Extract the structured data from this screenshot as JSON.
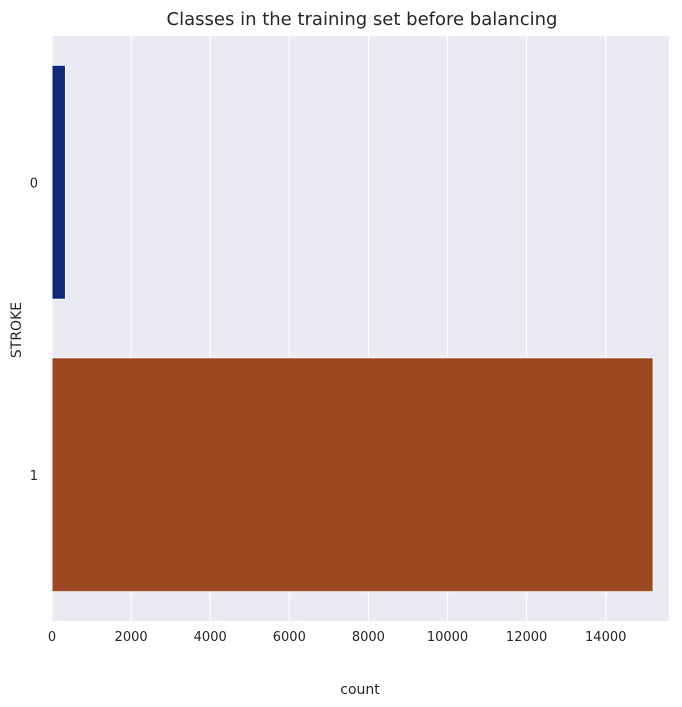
{
  "chart_data": {
    "type": "bar",
    "orientation": "horizontal",
    "title": "Classes in the training set before balancing",
    "xlabel": "count",
    "ylabel": "STROKE",
    "categories": [
      "0",
      "1"
    ],
    "values": [
      340,
      15200
    ],
    "colors": [
      "#13277a",
      "#9c4921"
    ],
    "xlim": [
      0,
      15600
    ],
    "xticks": [
      0,
      2000,
      4000,
      6000,
      8000,
      10000,
      12000,
      14000
    ],
    "xtick_labels": [
      "0",
      "2000",
      "4000",
      "6000",
      "8000",
      "10000",
      "12000",
      "14000"
    ],
    "grid": "vertical",
    "legend": "none",
    "background": "#eaeaf2"
  }
}
